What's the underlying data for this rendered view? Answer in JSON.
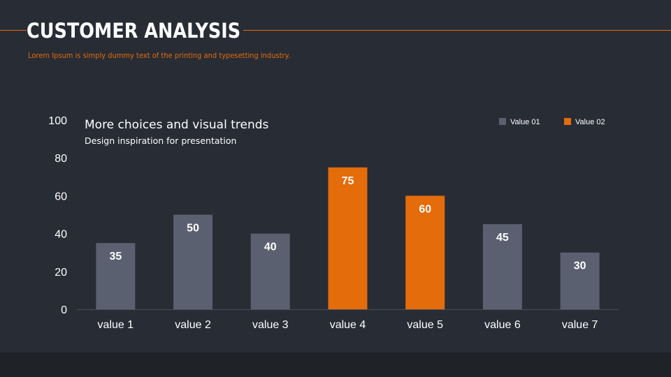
{
  "slide": {
    "title": "CUSTOMER ANALYSIS",
    "subtitle": "Lorem Ipsum is simply dummy text of the printing and typesetting industry."
  },
  "colors": {
    "background": "#282c35",
    "accent": "#e46c0a",
    "series_gray": "#5a6070",
    "axis_text": "#ffffff"
  },
  "chart_data": {
    "type": "bar",
    "title": "More choices and visual trends",
    "subtitle": "Design inspiration for presentation",
    "categories": [
      "value 1",
      "value 2",
      "value 3",
      "value 4",
      "value 5",
      "value 6",
      "value 7"
    ],
    "series": [
      {
        "name": "Value 01",
        "color": "#5a6070",
        "values": [
          35,
          50,
          40,
          null,
          null,
          45,
          30
        ]
      },
      {
        "name": "Value 02",
        "color": "#e46c0a",
        "values": [
          null,
          null,
          null,
          75,
          60,
          null,
          null
        ]
      }
    ],
    "values": [
      35,
      50,
      40,
      75,
      60,
      45,
      30
    ],
    "ylim": [
      0,
      100
    ],
    "yticks": [
      0,
      20,
      40,
      60,
      80,
      100
    ],
    "grid": false,
    "legend": "top-right",
    "xlabel": "",
    "ylabel": ""
  }
}
